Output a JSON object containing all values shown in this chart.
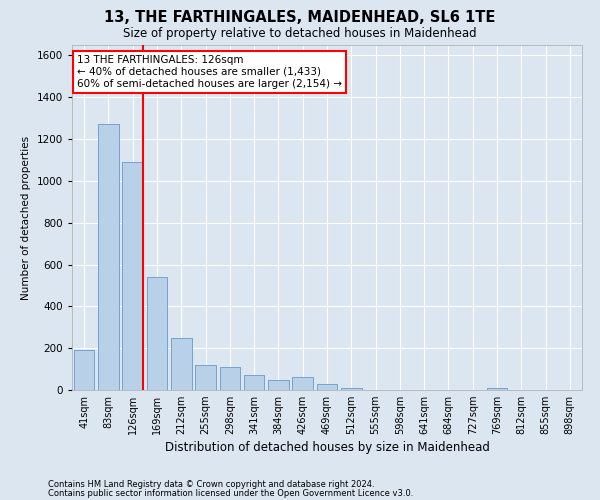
{
  "title": "13, THE FARTHINGALES, MAIDENHEAD, SL6 1TE",
  "subtitle": "Size of property relative to detached houses in Maidenhead",
  "xlabel": "Distribution of detached houses by size in Maidenhead",
  "ylabel": "Number of detached properties",
  "footnote1": "Contains HM Land Registry data © Crown copyright and database right 2024.",
  "footnote2": "Contains public sector information licensed under the Open Government Licence v3.0.",
  "annotation_line1": "13 THE FARTHINGALES: 126sqm",
  "annotation_line2": "← 40% of detached houses are smaller (1,433)",
  "annotation_line3": "60% of semi-detached houses are larger (2,154) →",
  "bar_categories": [
    "41sqm",
    "83sqm",
    "126sqm",
    "169sqm",
    "212sqm",
    "255sqm",
    "298sqm",
    "341sqm",
    "384sqm",
    "426sqm",
    "469sqm",
    "512sqm",
    "555sqm",
    "598sqm",
    "641sqm",
    "684sqm",
    "727sqm",
    "769sqm",
    "812sqm",
    "855sqm",
    "898sqm"
  ],
  "bar_values": [
    190,
    1270,
    1090,
    540,
    250,
    120,
    110,
    70,
    50,
    60,
    30,
    10,
    0,
    0,
    0,
    0,
    0,
    10,
    0,
    0,
    0
  ],
  "bar_color": "#b8d0e8",
  "bar_edge_color": "#6699cc",
  "red_line_index": 2,
  "ylim": [
    0,
    1650
  ],
  "yticks": [
    0,
    200,
    400,
    600,
    800,
    1000,
    1200,
    1400,
    1600
  ],
  "fig_bg_color": "#dce6f1",
  "ax_bg_color": "#dce6f1",
  "grid_color": "#ffffff",
  "red_line_color": "red",
  "title_fontsize": 10.5,
  "subtitle_fontsize": 8.5,
  "xlabel_fontsize": 8.5,
  "ylabel_fontsize": 7.5,
  "xtick_fontsize": 7,
  "ytick_fontsize": 7.5,
  "annot_fontsize": 7.5,
  "footnote_fontsize": 6
}
